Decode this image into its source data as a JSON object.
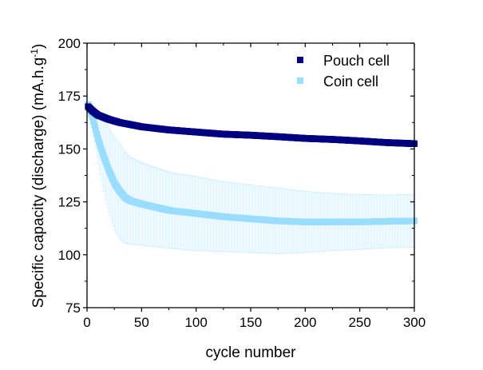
{
  "chart_data": {
    "type": "scatter",
    "title": "",
    "xlabel": "cycle number",
    "ylabel": "Specific capacity (discharge) (mA.h.g",
    "ylabel_superscript": "-1",
    "ylabel_suffix": ")",
    "xlim": [
      0,
      300
    ],
    "ylim": [
      75,
      200
    ],
    "xticks": [
      0,
      50,
      100,
      150,
      200,
      250,
      300
    ],
    "yticks": [
      75,
      100,
      125,
      150,
      175,
      200
    ],
    "xtick_labels": [
      "0",
      "50",
      "100",
      "150",
      "200",
      "250",
      "300"
    ],
    "ytick_labels": [
      "75",
      "100",
      "125",
      "150",
      "175",
      "200"
    ],
    "grid": false,
    "legend_position": "top-right",
    "series": [
      {
        "name": "Pouch cell",
        "color": "#000080",
        "x": [
          1,
          5,
          10,
          20,
          30,
          40,
          50,
          75,
          100,
          125,
          150,
          175,
          200,
          225,
          250,
          275,
          300
        ],
        "y": [
          170,
          168,
          166,
          164,
          162.5,
          161.5,
          160.5,
          159,
          158,
          157,
          156.5,
          155.8,
          155,
          154.5,
          153.8,
          153,
          152.5
        ],
        "error": [
          1.5,
          1.5,
          1.5,
          1.5,
          1.5,
          1.5,
          1.5,
          1.5,
          1.5,
          1.5,
          1.5,
          1.5,
          1.5,
          1.5,
          1.5,
          1.5,
          1.5
        ]
      },
      {
        "name": "Coin cell",
        "color": "#99DDFF",
        "error_color": "#CCEEFF",
        "x": [
          1,
          5,
          10,
          15,
          20,
          25,
          30,
          35,
          40,
          50,
          75,
          100,
          125,
          150,
          175,
          200,
          225,
          250,
          275,
          300
        ],
        "y": [
          171,
          165,
          155,
          147,
          140,
          134,
          130,
          127,
          125.5,
          124,
          121,
          119.5,
          118,
          117,
          116,
          115.5,
          115.5,
          115.5,
          115.8,
          116
        ],
        "error": [
          1,
          5,
          12,
          17,
          20,
          22,
          22.5,
          21.5,
          20.5,
          19.5,
          18,
          17.5,
          16.5,
          16,
          15.5,
          14.5,
          13.5,
          13,
          12.5,
          12.5
        ]
      }
    ]
  }
}
